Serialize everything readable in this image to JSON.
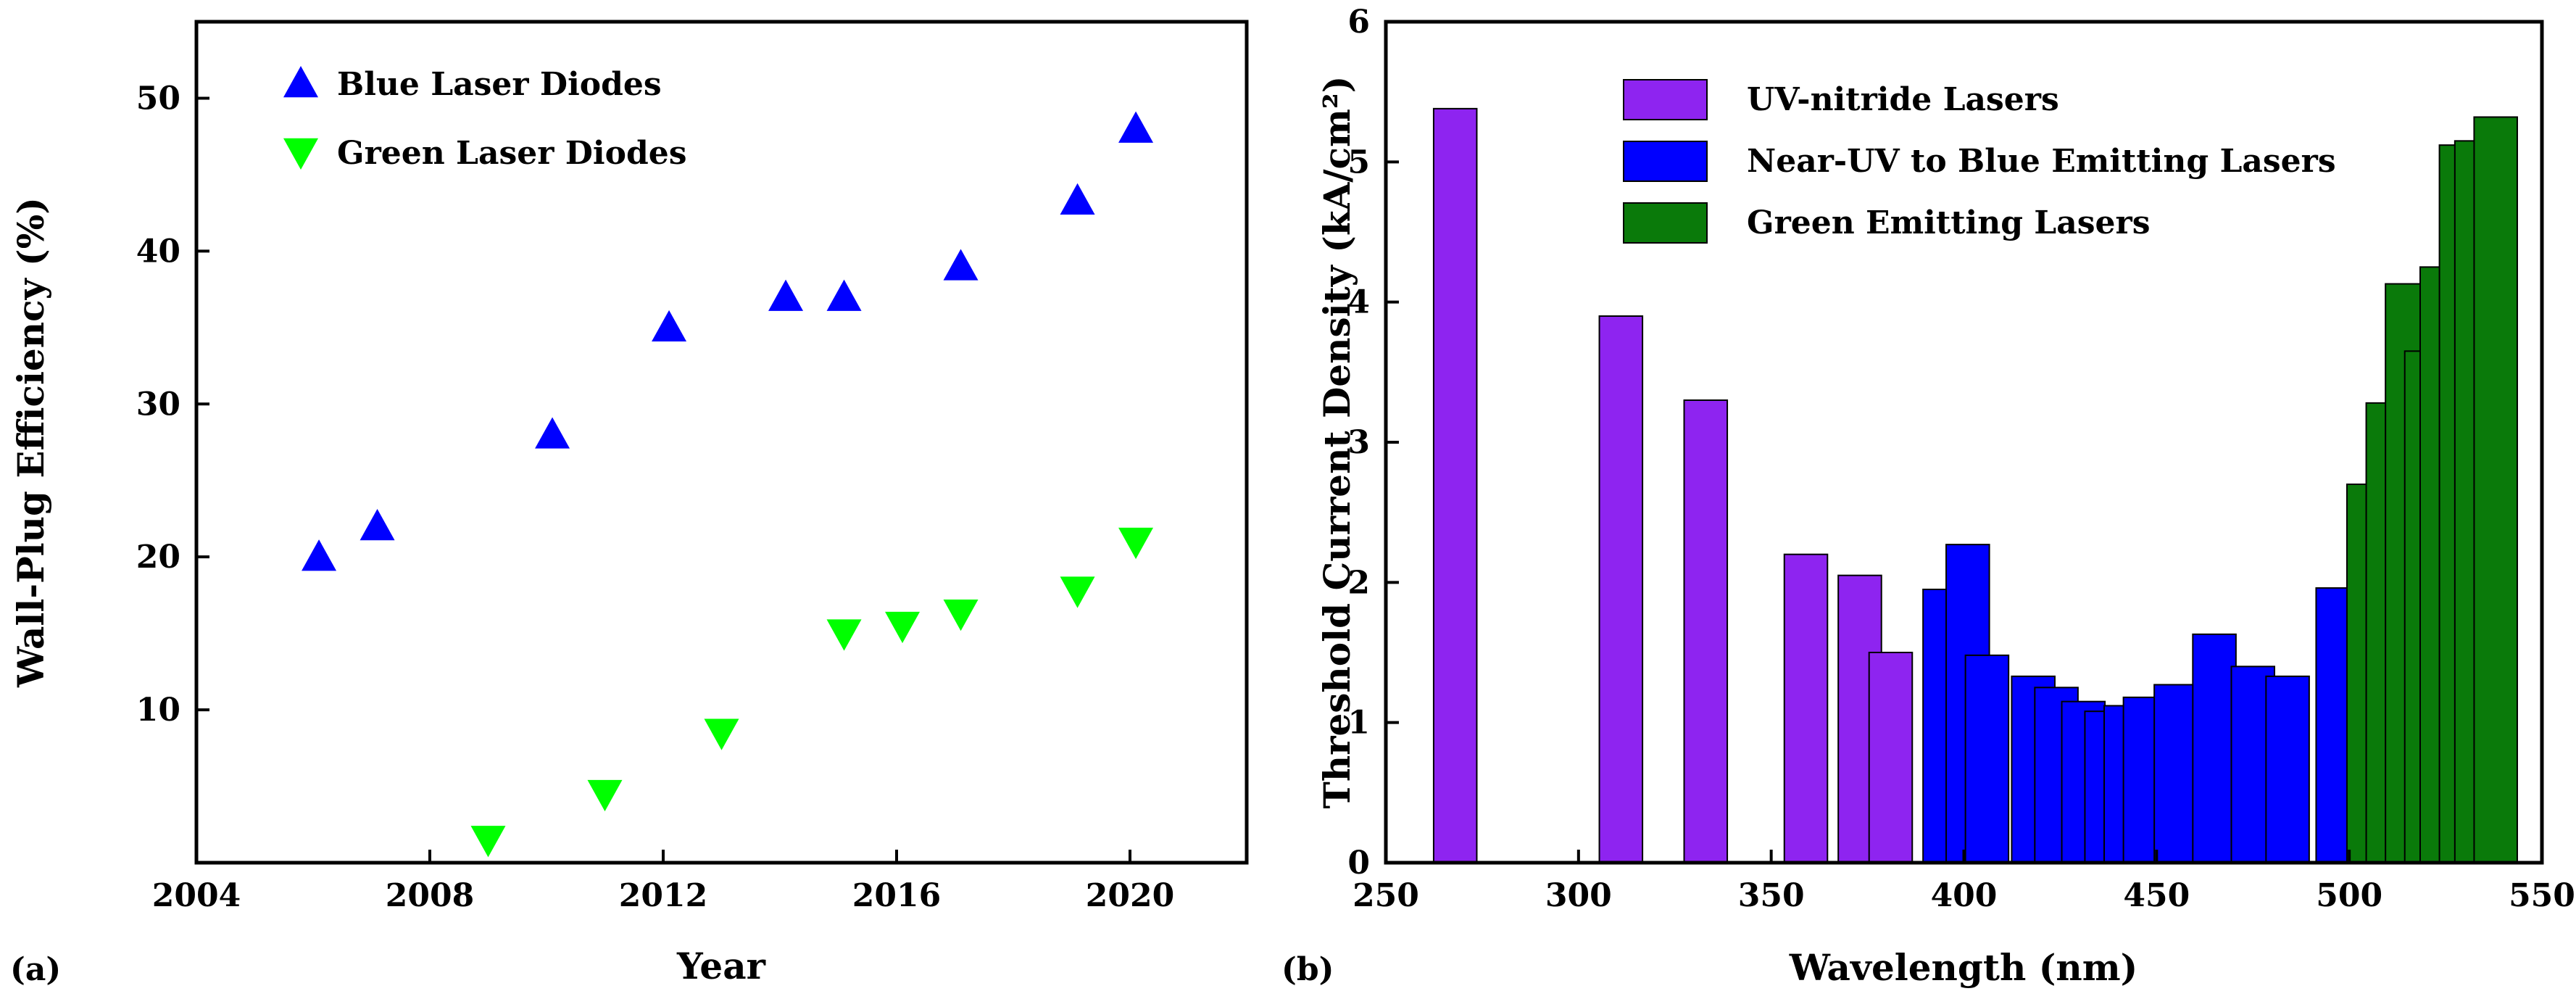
{
  "chart_data": [
    {
      "type": "scatter",
      "panel_label": "(a)",
      "xlabel": "Year",
      "ylabel": "Wall-Plug Efficiency (%)",
      "xlim": [
        2004,
        2022
      ],
      "ylim": [
        0,
        55
      ],
      "xticks": [
        2004,
        2008,
        2012,
        2016,
        2020
      ],
      "yticks": [
        10,
        20,
        30,
        40,
        50
      ],
      "legend_position": "top-left",
      "series": [
        {
          "name": "Blue Laser Diodes",
          "marker": "triangle-up",
          "color": "#0000FF",
          "x": [
            2006.1,
            2007.1,
            2010.1,
            2012.1,
            2014.1,
            2015.1,
            2017.1,
            2019.1,
            2020.1
          ],
          "y": [
            20,
            22,
            28,
            35,
            37,
            37,
            39,
            43.3,
            48
          ]
        },
        {
          "name": "Green Laser Diodes",
          "marker": "triangle-down",
          "color": "#00FF00",
          "x": [
            2009,
            2011,
            2013,
            2015.1,
            2016.1,
            2017.1,
            2019.1,
            2020.1
          ],
          "y": [
            1.5,
            4.5,
            8.5,
            15,
            15.5,
            16.3,
            17.8,
            21
          ]
        }
      ]
    },
    {
      "type": "bar",
      "panel_label": "(b)",
      "xlabel": "Wavelength (nm)",
      "ylabel": "Threshold Current Density (kA/cm²)",
      "xlim": [
        250,
        550
      ],
      "ylim": [
        0,
        6
      ],
      "xticks": [
        250,
        300,
        350,
        400,
        450,
        500,
        550
      ],
      "yticks": [
        0,
        1,
        2,
        3,
        4,
        5,
        6
      ],
      "legend_position": "top-right",
      "series": [
        {
          "name": "UV-nitride Lasers",
          "color": "#8E24F0",
          "x": [
            268,
            311,
            333,
            359,
            373,
            381
          ],
          "values": [
            5.38,
            3.9,
            3.3,
            2.2,
            2.05,
            1.5
          ]
        },
        {
          "name": "Near-UV to Blue Emitting Lasers",
          "color": "#0000FF",
          "x": [
            395,
            401,
            406,
            418,
            424,
            431,
            437,
            442,
            447,
            455,
            465,
            475,
            484,
            497
          ],
          "values": [
            1.95,
            2.27,
            1.48,
            1.33,
            1.25,
            1.15,
            1.08,
            1.12,
            1.18,
            1.27,
            1.63,
            1.4,
            1.33,
            1.96
          ]
        },
        {
          "name": "Green Emitting Lasers",
          "color": "#0A7A0A",
          "x": [
            505,
            510,
            515,
            520,
            524,
            529,
            533,
            538
          ],
          "values": [
            2.7,
            3.28,
            4.13,
            3.65,
            4.25,
            5.12,
            5.15,
            5.32
          ]
        }
      ]
    }
  ]
}
